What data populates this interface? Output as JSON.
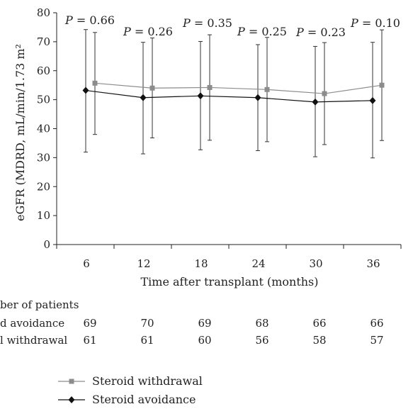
{
  "chart_data": {
    "type": "line",
    "title": "",
    "xlabel": "Time after transplant (months)",
    "ylabel": "eGFR (MDRD, mL/min/1.73 m²",
    "categories": [
      "6",
      "12",
      "18",
      "24",
      "30",
      "36"
    ],
    "yticks": [
      "0",
      "10",
      "20",
      "30",
      "40",
      "50",
      "60",
      "70",
      "80"
    ],
    "ylim": [
      0,
      80
    ],
    "grid": false,
    "series": [
      {
        "name": "Steroid withdrawal",
        "color": "#8c8c8c",
        "marker": "square",
        "values": [
          55.7,
          54.0,
          54.2,
          53.5,
          52.1,
          55.0
        ],
        "error_low": [
          38.0,
          36.8,
          36.0,
          35.5,
          34.5,
          35.9
        ],
        "error_high": [
          73.2,
          71.3,
          72.4,
          71.5,
          69.7,
          74.1
        ]
      },
      {
        "name": "Steroid avoidance",
        "color": "#111111",
        "marker": "diamond",
        "values": [
          53.2,
          50.7,
          51.3,
          50.7,
          49.2,
          49.7
        ],
        "error_low": [
          31.9,
          31.3,
          32.7,
          32.4,
          30.3,
          29.9
        ],
        "error_high": [
          74.2,
          69.8,
          70.1,
          69.0,
          68.4,
          69.8
        ]
      }
    ],
    "p_values": [
      {
        "label": "P",
        "value": "= 0.66"
      },
      {
        "label": "P",
        "value": "= 0.26"
      },
      {
        "label": "P",
        "value": "= 0.35"
      },
      {
        "label": "P",
        "value": "= 0.25"
      },
      {
        "label": "P",
        "value": "= 0.23"
      },
      {
        "label": "P",
        "value": "= 0.10"
      }
    ],
    "patients_table": {
      "header": "ber of patients",
      "rows": [
        {
          "label": "d avoidance",
          "counts": [
            "69",
            "70",
            "69",
            "68",
            "66",
            "66"
          ]
        },
        {
          "label": "l withdrawal",
          "counts": [
            "61",
            "61",
            "60",
            "56",
            "58",
            "57"
          ]
        }
      ]
    },
    "legend_placement": "bottom-center"
  }
}
